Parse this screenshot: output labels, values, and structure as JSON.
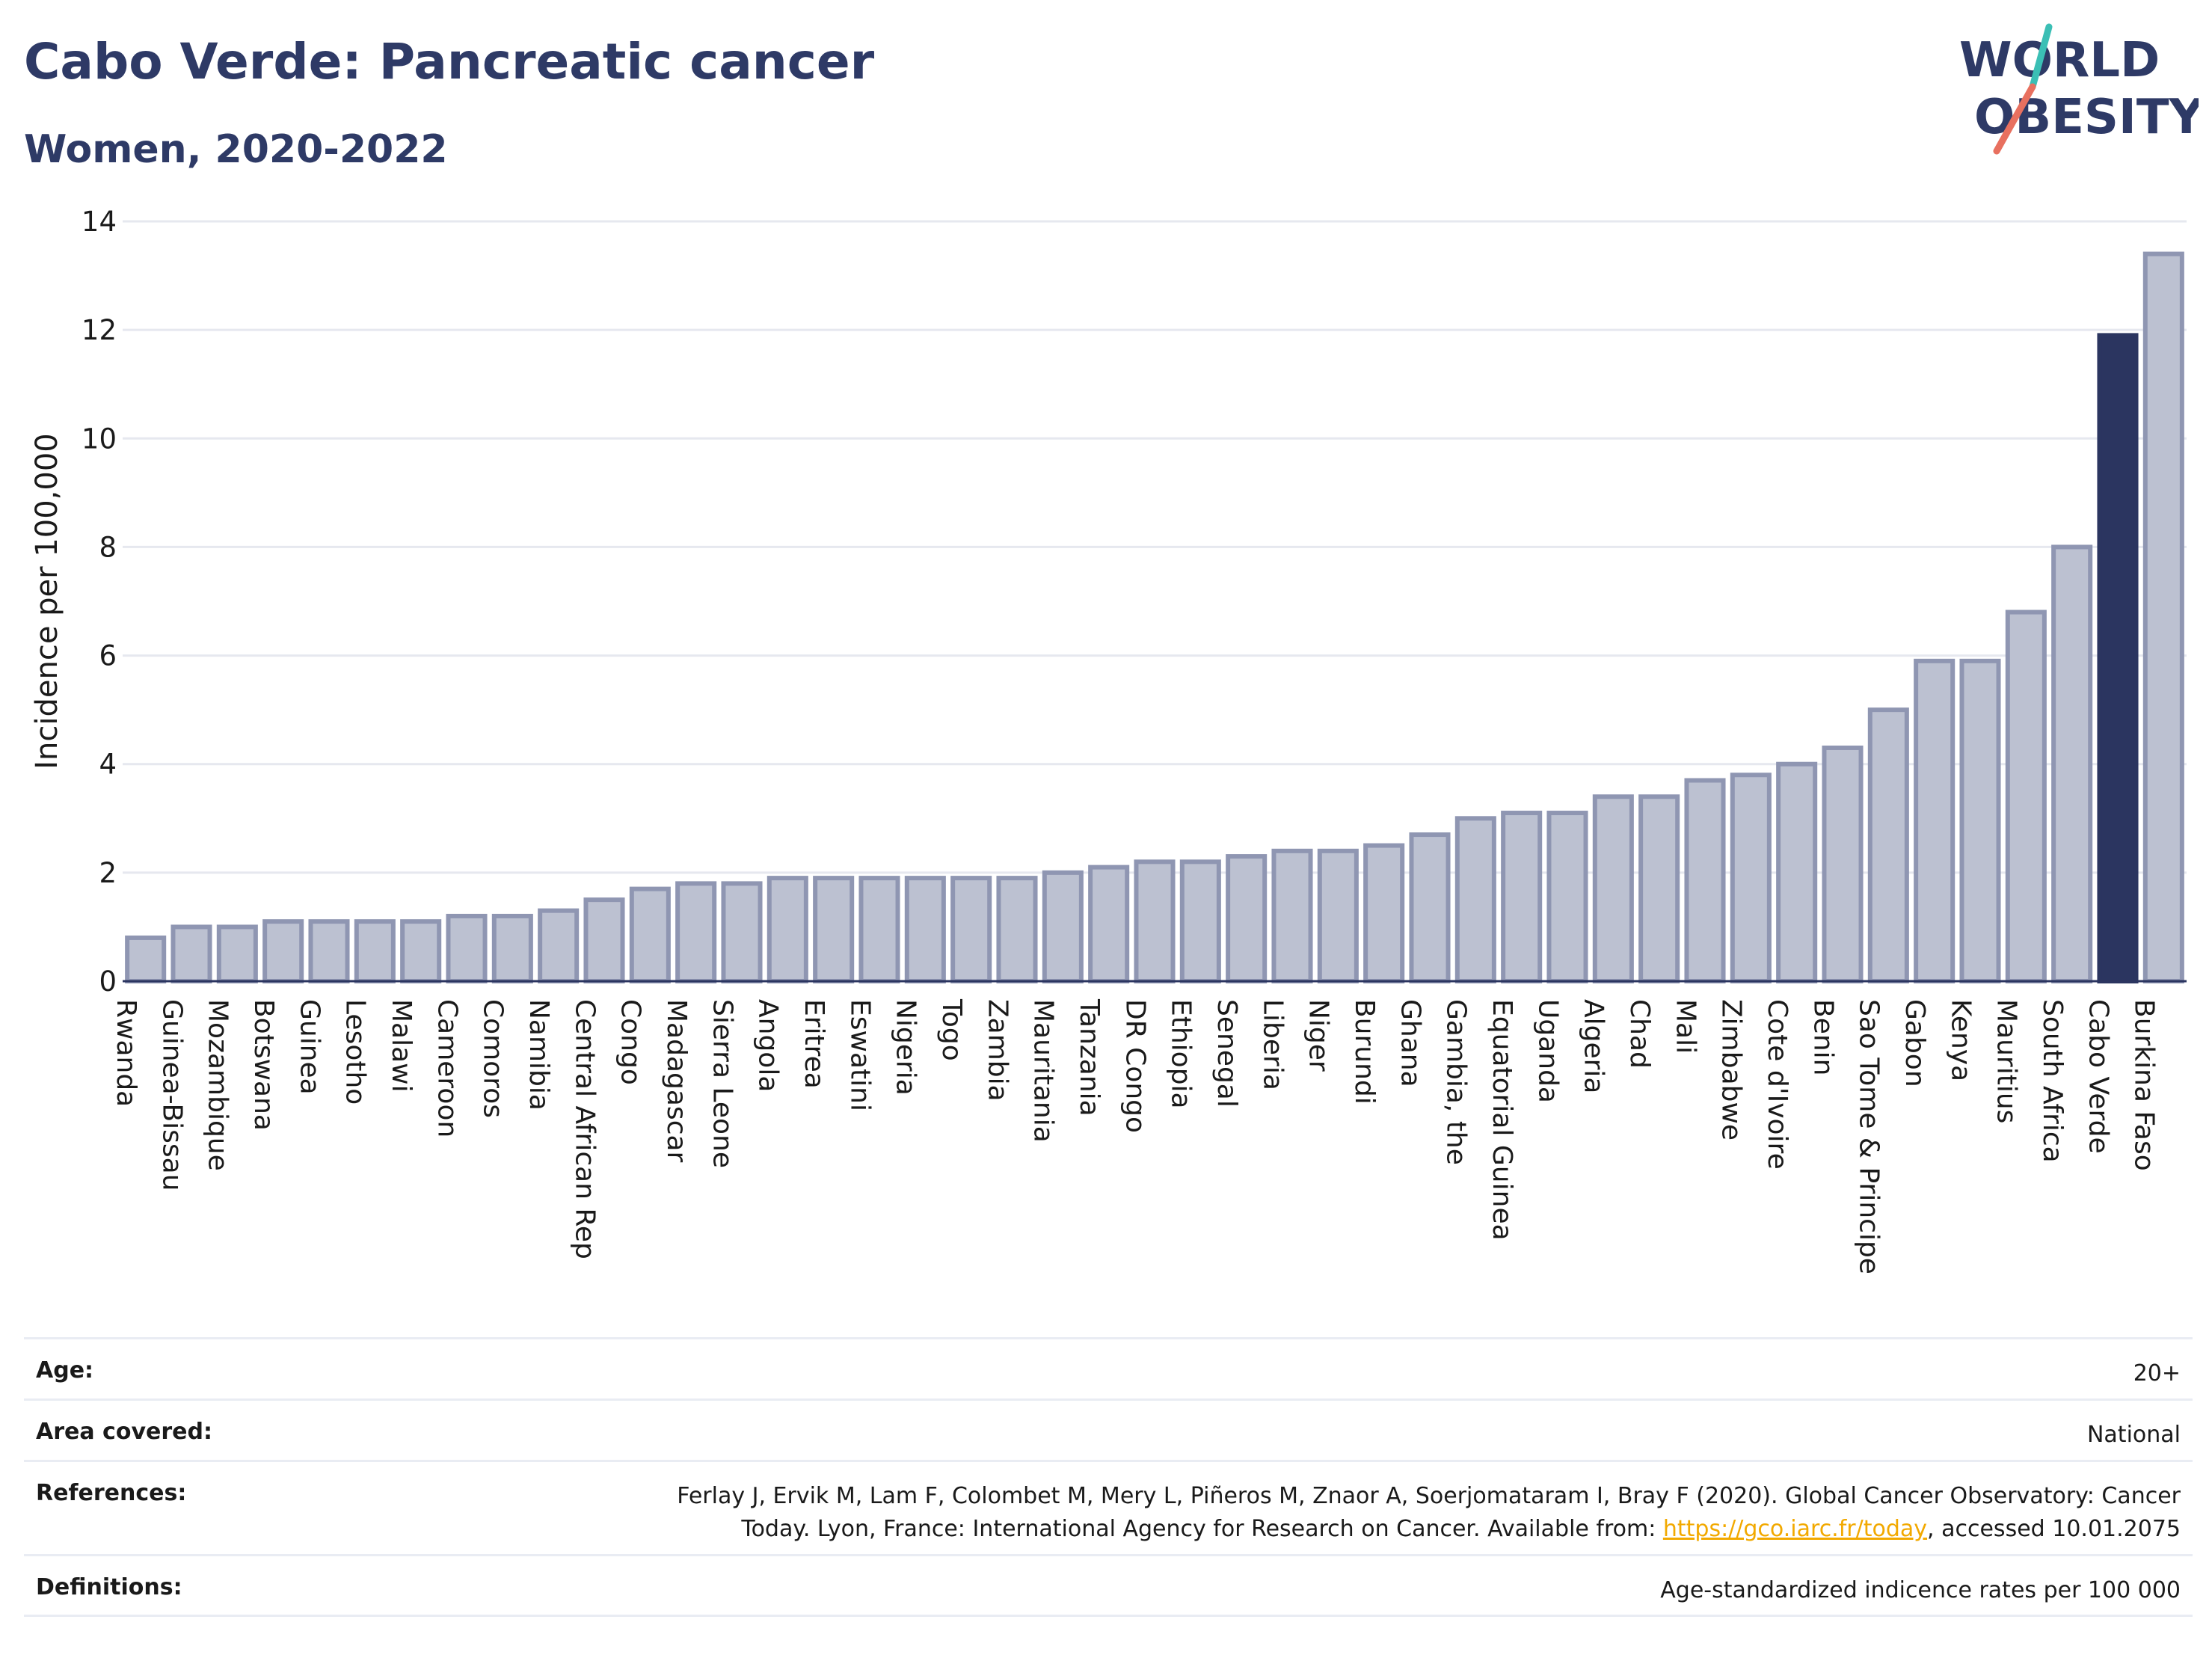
{
  "title": "Cabo Verde: Pancreatic cancer",
  "subtitle": "Women, 2020-2022",
  "logo": {
    "line1": "WORLD",
    "line2": "OBESITY",
    "colors": {
      "text": "#2e3a66",
      "slash_top": "#3bbfb5",
      "slash_bottom": "#e8705f"
    }
  },
  "colors": {
    "bar_fill": "#bcc1d1",
    "bar_stroke": "#8f96b2",
    "highlight": "#2b3560",
    "grid": "#e6e8ef",
    "axis": "#2b3560"
  },
  "chart_data": {
    "type": "bar",
    "ylabel": "Incidence per 100,000",
    "ylim": [
      0,
      14
    ],
    "yticks": [
      0,
      2,
      4,
      6,
      8,
      10,
      12,
      14
    ],
    "grid": true,
    "highlight": "Cabo Verde",
    "categories": [
      "Rwanda",
      "Guinea-Bissau",
      "Mozambique",
      "Botswana",
      "Guinea",
      "Lesotho",
      "Malawi",
      "Cameroon",
      "Comoros",
      "Namibia",
      "Central African Rep",
      "Congo",
      "Madagascar",
      "Sierra Leone",
      "Angola",
      "Eritrea",
      "Eswatini",
      "Nigeria",
      "Togo",
      "Zambia",
      "Mauritania",
      "Tanzania",
      "DR Congo",
      "Ethiopia",
      "Senegal",
      "Liberia",
      "Niger",
      "Burundi",
      "Ghana",
      "Gambia, the",
      "Equatorial Guinea",
      "Uganda",
      "Algeria",
      "Chad",
      "Mali",
      "Zimbabwe",
      "Cote d'Ivoire",
      "Benin",
      "Sao Tome & Principe",
      "Gabon",
      "Kenya",
      "Mauritius",
      "South Africa",
      "Cabo Verde",
      "Burkina Faso"
    ],
    "values": [
      0.8,
      1.0,
      1.0,
      1.1,
      1.1,
      1.1,
      1.1,
      1.2,
      1.2,
      1.3,
      1.5,
      1.7,
      1.8,
      1.8,
      1.9,
      1.9,
      1.9,
      1.9,
      1.9,
      1.9,
      2.0,
      2.1,
      2.2,
      2.2,
      2.3,
      2.4,
      2.4,
      2.5,
      2.7,
      3.0,
      3.1,
      3.1,
      3.4,
      3.4,
      3.7,
      3.8,
      4.0,
      4.3,
      5.0,
      5.9,
      5.9,
      6.8,
      8.0,
      11.9,
      13.4
    ]
  },
  "meta": {
    "age_label": "Age:",
    "age_value": "20+",
    "area_label": "Area covered:",
    "area_value": "National",
    "references_label": "References:",
    "references_line1": "Ferlay J, Ervik M, Lam F, Colombet M, Mery L, Piñeros M, Znaor A, Soerjomataram I, Bray F (2020). Global Cancer Observatory: Cancer",
    "references_line2_pre": "Today. Lyon, France: International Agency for Research on Cancer. Available from: ",
    "references_link": "https://gco.iarc.fr/today",
    "references_line2_post": ", accessed 10.01.2075",
    "definitions_label": "Definitions:",
    "definitions_value": "Age-standardized indicence rates per 100 000"
  }
}
